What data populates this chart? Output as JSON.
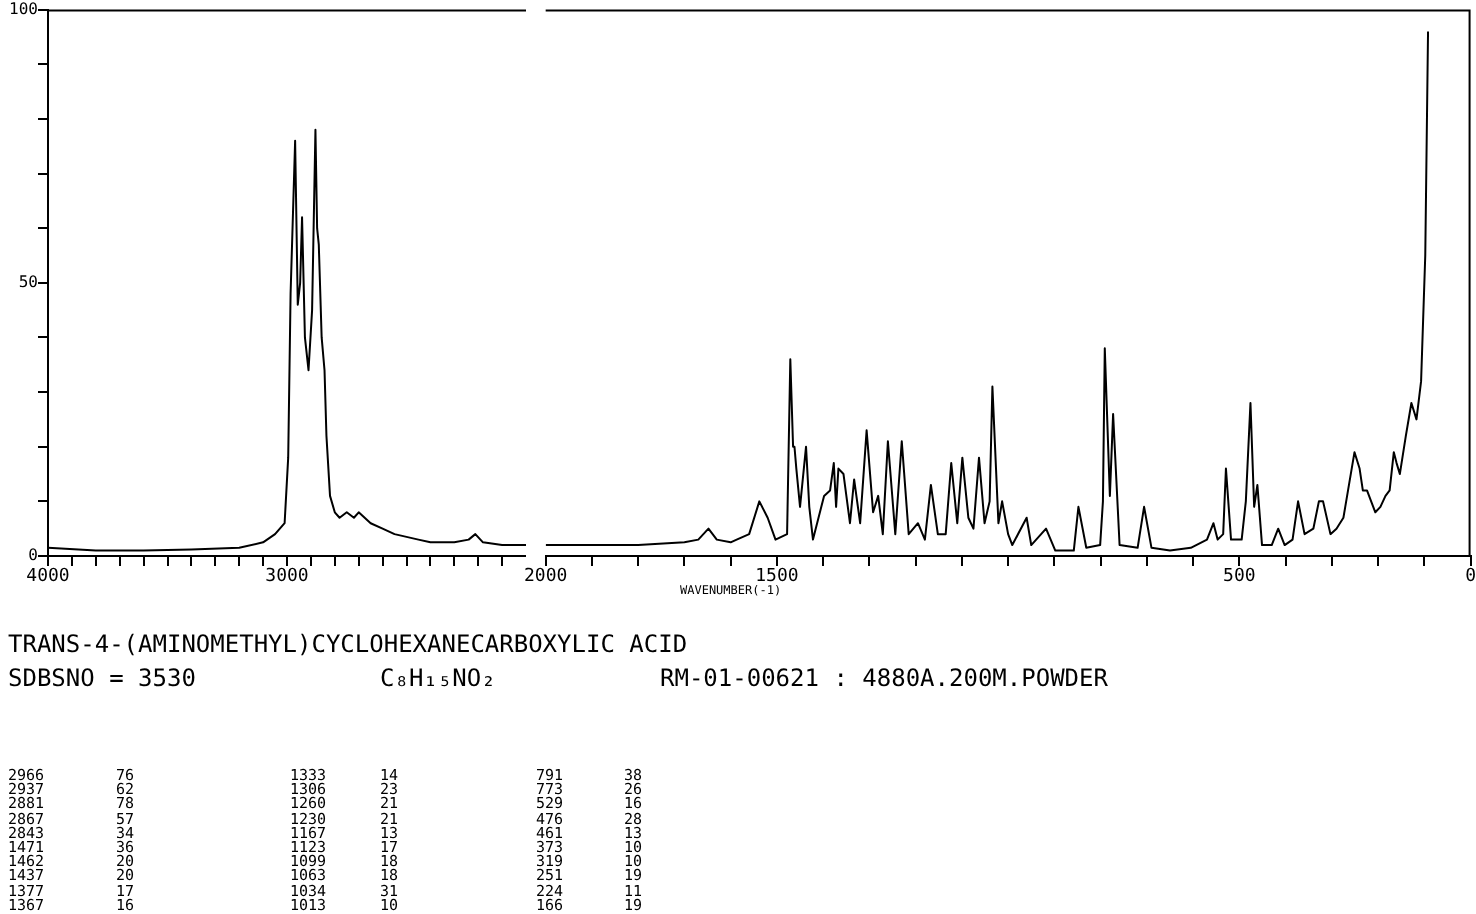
{
  "chart_data": [
    {
      "type": "line",
      "title": "TRANS-4-(AMINOMETHYL)CYCLOHEXANECARBOXYLIC ACID",
      "annotations": [
        "SDBSNO = 3530",
        "C₈H₁₅NO₂",
        "RM-01-00621 : 4880A.200M.POWDER",
        "2966",
        "2937",
        "2881",
        "2867",
        "2843",
        "1471",
        "1462",
        "1437",
        "1377",
        "1367",
        "76",
        "62",
        "78",
        "57",
        "34",
        "36",
        "20",
        "20",
        "17",
        "16",
        "1333",
        "1306",
        "1260",
        "1230",
        "1167",
        "1123",
        "1099",
        "1063",
        "1034",
        "1013",
        "14",
        "23",
        "21",
        "21",
        "13",
        "17",
        "18",
        "18",
        "31",
        "10",
        "791",
        "773",
        "529",
        "476",
        "461",
        "373",
        "319",
        "251",
        "224",
        "166",
        "38",
        "26",
        "16",
        "28",
        "13",
        "10",
        "10",
        "19",
        "11",
        "19"
      ],
      "series": [
        {
          "color": "#000000",
          "x": [
            4000,
            3800,
            3600,
            3400,
            3200,
            3100,
            3050,
            3010,
            2995,
            2985,
            2966,
            2955,
            2945,
            2937,
            2925,
            2910,
            2895,
            2881,
            2874,
            2867,
            2855,
            2843,
            2835,
            2820,
            2800,
            2780,
            2750,
            2720,
            2700,
            2650,
            2600,
            2550,
            2450,
            2400,
            2300,
            2240,
            2212,
            2180,
            2100,
            2000
          ],
          "values": [
            1.5,
            1,
            1,
            1.2,
            1.5,
            2.5,
            4,
            6,
            18,
            48,
            76,
            46,
            50,
            62,
            40,
            34,
            45,
            78,
            60,
            57,
            40,
            34,
            22,
            11,
            8,
            7,
            8,
            7,
            8,
            6,
            5,
            4,
            3,
            2.5,
            2.5,
            3,
            4,
            2.5,
            2,
            2
          ]
        }
      ],
      "xlim": [
        4000,
        2000
      ],
      "xticks": [
        4000,
        {
          "value": 3900,
          "label": null
        },
        {
          "value": 3800,
          "label": null
        },
        {
          "value": 3700,
          "label": null
        },
        {
          "value": 3600,
          "label": null
        },
        {
          "value": 3500,
          "label": null
        },
        {
          "value": 3400,
          "label": null
        },
        {
          "value": 3300,
          "label": null
        },
        {
          "value": 3200,
          "label": null
        },
        {
          "value": 3100,
          "label": null
        },
        3000,
        {
          "value": 2900,
          "label": null
        },
        {
          "value": 2800,
          "label": null
        },
        {
          "value": 2700,
          "label": null
        },
        {
          "value": 2600,
          "label": null
        },
        {
          "value": 2500,
          "label": null
        },
        {
          "value": 2400,
          "label": null
        },
        {
          "value": 2300,
          "label": null
        },
        {
          "value": 2200,
          "label": null
        },
        {
          "value": 2100,
          "label": null
        }
      ],
      "ylim": [
        0,
        100
      ],
      "yticks": [
        0,
        {
          "value": 10,
          "label": null
        },
        {
          "value": 20,
          "label": null
        },
        {
          "value": 30,
          "label": null
        },
        {
          "value": 40,
          "label": null
        },
        50,
        {
          "value": 60,
          "label": null
        },
        {
          "value": 70,
          "label": null
        },
        {
          "value": 80,
          "label": null
        },
        {
          "value": 90,
          "label": null
        },
        100
      ],
      "marker": "none",
      "line_style": "solid"
    },
    {
      "type": "line",
      "xlabel": "WAVENUMBER(-1)",
      "series": [
        {
          "color": "#000000",
          "x": [
            2000,
            1900,
            1800,
            1700,
            1670,
            1648,
            1630,
            1600,
            1587,
            1560,
            1538,
            1520,
            1503,
            1478,
            1471,
            1465,
            1462,
            1458,
            1450,
            1437,
            1430,
            1422,
            1398,
            1385,
            1377,
            1372,
            1367,
            1356,
            1342,
            1333,
            1320,
            1306,
            1292,
            1281,
            1271,
            1260,
            1244,
            1230,
            1215,
            1195,
            1180,
            1167,
            1152,
            1135,
            1123,
            1110,
            1099,
            1086,
            1075,
            1063,
            1051,
            1040,
            1034,
            1021,
            1013,
            1000,
            991,
            960,
            950,
            918,
            898,
            858,
            848,
            831,
            801,
            795,
            791,
            780,
            773,
            759,
            720,
            706,
            690,
            650,
            605,
            570,
            556,
            547,
            535,
            529,
            518,
            495,
            486,
            476,
            468,
            461,
            451,
            430,
            416,
            402,
            385,
            373,
            359,
            340,
            328,
            319,
            303,
            290,
            275,
            265,
            251,
            240,
            233,
            224,
            215,
            206,
            195,
            184,
            175,
            166,
            160,
            153,
            140,
            128,
            117,
            107,
            98,
            92
          ],
          "values": [
            2,
            2,
            2,
            2.5,
            3,
            5,
            3,
            2.5,
            3,
            4,
            10,
            7,
            3,
            4,
            36,
            20,
            20,
            16,
            9,
            20,
            9,
            3,
            11,
            12,
            17,
            9,
            16,
            15,
            6,
            14,
            6,
            23,
            8,
            11,
            4,
            21,
            4,
            21,
            4,
            6,
            3,
            13,
            4,
            4,
            17,
            6,
            18,
            7,
            5,
            18,
            6,
            10,
            31,
            6,
            10,
            4,
            2,
            7,
            2,
            5,
            1,
            1,
            9,
            1.5,
            2,
            10,
            38,
            11,
            26,
            2,
            1.5,
            9,
            1.5,
            1,
            1.5,
            3,
            6,
            3,
            4,
            16,
            3,
            3,
            10,
            28,
            9,
            13,
            2,
            2,
            5,
            2,
            3,
            10,
            4,
            5,
            10,
            10,
            4,
            5,
            7,
            12,
            19,
            16,
            12,
            12,
            10,
            8,
            9,
            11,
            12,
            19,
            17,
            15,
            22,
            28,
            25,
            32,
            55,
            96
          ]
        }
      ],
      "xlim": [
        2000,
        0
      ],
      "xticks": [
        2000,
        {
          "value": 1900,
          "label": null
        },
        {
          "value": 1800,
          "label": null
        },
        {
          "value": 1700,
          "label": null
        },
        {
          "value": 1600,
          "label": null
        },
        1500,
        {
          "value": 1400,
          "label": null
        },
        {
          "value": 1300,
          "label": null
        },
        {
          "value": 1200,
          "label": null
        },
        {
          "value": 1100,
          "label": null
        },
        {
          "value": 1000,
          "label": null
        },
        {
          "value": 900,
          "label": null
        },
        {
          "value": 800,
          "label": null
        },
        {
          "value": 700,
          "label": null
        },
        {
          "value": 600,
          "label": null
        },
        500,
        {
          "value": 400,
          "label": null
        },
        {
          "value": 300,
          "label": null
        },
        {
          "value": 200,
          "label": null
        },
        {
          "value": 100,
          "label": null
        },
        0
      ],
      "ylim": [
        0,
        100
      ],
      "tick_labels": "x",
      "marker": "none",
      "line_style": "solid"
    }
  ]
}
